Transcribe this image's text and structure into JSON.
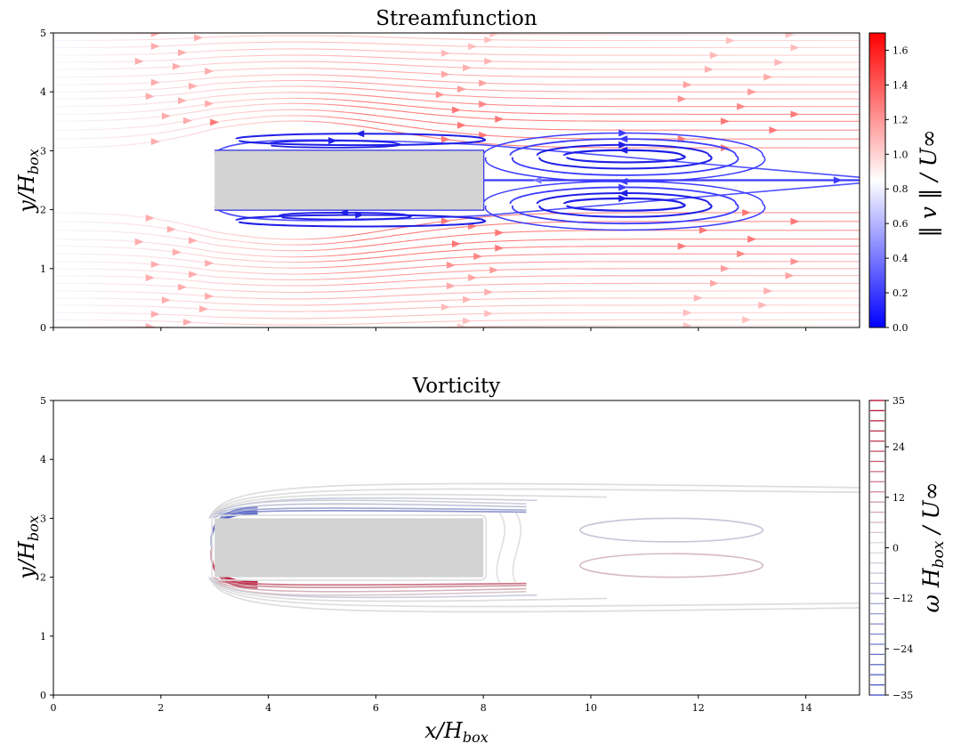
{
  "chart_data": [
    {
      "type": "streamplot",
      "title": "Streamfunction",
      "ylabel": "y/H_box",
      "xlim": [
        0,
        15
      ],
      "ylim": [
        0,
        5
      ],
      "xticks": [
        0,
        2,
        4,
        6,
        8,
        10,
        12,
        14
      ],
      "yticks": [
        0,
        1,
        2,
        3,
        4,
        5
      ],
      "yticklabels": [
        "0",
        "1",
        "2",
        "3",
        "4",
        "5"
      ],
      "xticklabels_visible": false,
      "obstacle": {
        "x": [
          3,
          8
        ],
        "y": [
          2,
          3
        ],
        "color": "#d3d3d3"
      },
      "colormap": "bwr",
      "colorbar": {
        "label": "‖ v ‖ / U∞",
        "range": [
          0.0,
          1.7
        ],
        "ticks": [
          0.0,
          0.2,
          0.4,
          0.6,
          0.8,
          1.0,
          1.2,
          1.4,
          1.6
        ],
        "ticklabels": [
          "0.0",
          "0.2",
          "0.4",
          "0.6",
          "0.8",
          "1.0",
          "1.2",
          "1.4",
          "1.6"
        ]
      }
    },
    {
      "type": "contour",
      "title": "Vorticity",
      "xlabel": "x/H_box",
      "ylabel": "y/H_box",
      "xlim": [
        0,
        15
      ],
      "ylim": [
        0,
        5
      ],
      "xticks": [
        0,
        2,
        4,
        6,
        8,
        10,
        12,
        14
      ],
      "xticklabels": [
        "0",
        "2",
        "4",
        "6",
        "8",
        "10",
        "12",
        "14"
      ],
      "yticks": [
        0,
        1,
        2,
        3,
        4,
        5
      ],
      "yticklabels": [
        "0",
        "1",
        "2",
        "3",
        "4",
        "5"
      ],
      "obstacle": {
        "x": [
          3,
          8
        ],
        "y": [
          2,
          3
        ],
        "color": "#d3d3d3"
      },
      "colormap": "coolwarm",
      "colorbar": {
        "label": "ω H_box / U∞",
        "range": [
          -35,
          35
        ],
        "ticks": [
          35,
          24,
          12,
          0,
          -12,
          -24,
          -35
        ],
        "ticklabels": [
          "35",
          "24",
          "12",
          "0",
          "−12",
          "−24",
          "−35"
        ]
      }
    }
  ]
}
